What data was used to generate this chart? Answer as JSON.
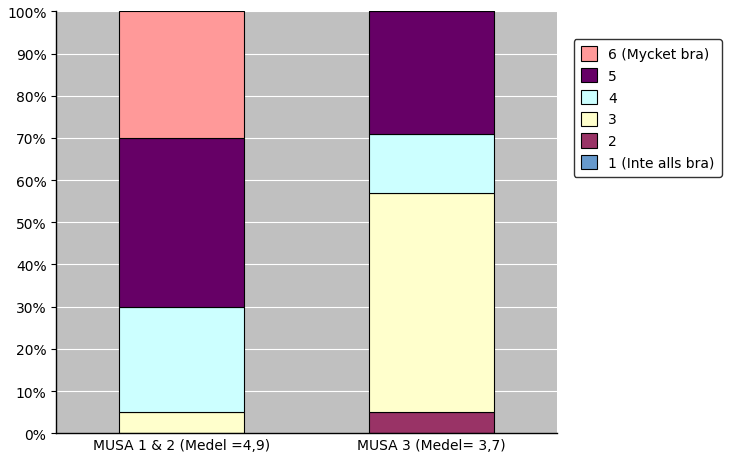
{
  "categories": [
    "MUSA 1 & 2 (Medel =4,9)",
    "MUSA 3 (Medel= 3,7)"
  ],
  "series": [
    {
      "label": "1 (Inte alls bra)",
      "color": "#6699CC",
      "values": [
        0.0,
        0.0
      ]
    },
    {
      "label": "2",
      "color": "#993366",
      "values": [
        0.0,
        0.05
      ]
    },
    {
      "label": "3",
      "color": "#FFFFCC",
      "values": [
        0.05,
        0.52
      ]
    },
    {
      "label": "4",
      "color": "#CCFFFF",
      "values": [
        0.25,
        0.14
      ]
    },
    {
      "label": "5",
      "color": "#660066",
      "values": [
        0.4,
        0.29
      ]
    },
    {
      "label": "6 (Mycket bra)",
      "color": "#FF9999",
      "values": [
        0.3,
        0.0
      ]
    }
  ],
  "yticks": [
    0.0,
    0.1,
    0.2,
    0.3,
    0.4,
    0.5,
    0.6,
    0.7,
    0.8,
    0.9,
    1.0
  ],
  "ytick_labels": [
    "0%",
    "10%",
    "20%",
    "30%",
    "40%",
    "50%",
    "60%",
    "70%",
    "80%",
    "90%",
    "100%"
  ],
  "background_color": "#C0C0C0",
  "plot_bg": "#C0C0C0",
  "bar_width": 0.25,
  "legend_order": [
    5,
    4,
    3,
    2,
    1,
    0
  ],
  "figsize": [
    7.3,
    4.6
  ],
  "dpi": 100
}
